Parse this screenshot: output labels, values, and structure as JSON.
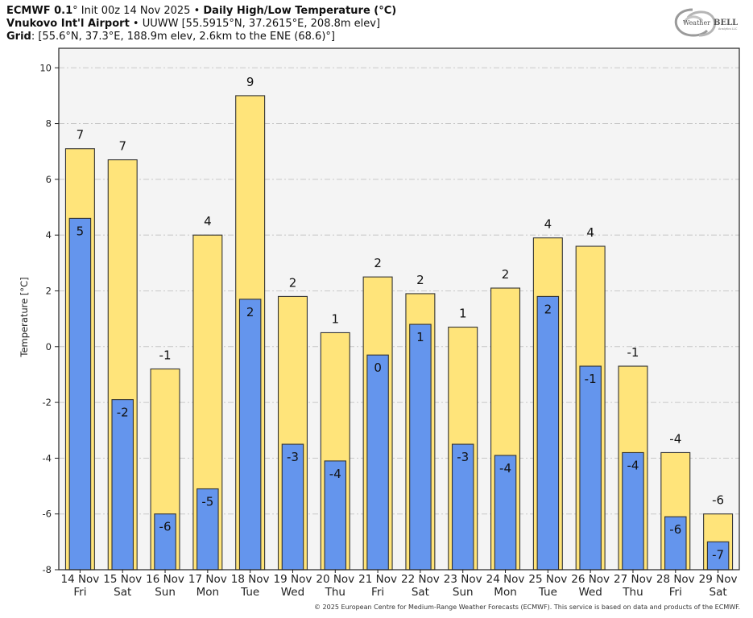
{
  "header": {
    "line1_bold_a": "ECMWF 0.1",
    "line1_a": "° Init 00z 14 Nov 2025 • ",
    "line1_bold_b": "Daily High/Low Temperature (°C)",
    "line2_bold": "Vnukovo Int'l Airport",
    "line2_rest": " • UUWW [55.5915°N, 37.2615°E, 208.8m elev]",
    "line3_bold": "Grid",
    "line3_rest": ": [55.6°N, 37.3°E, 188.9m elev, 2.6km to the ENE (68.6)°]"
  },
  "logo": {
    "text_a": "Weather",
    "text_b": "BELL",
    "sub": "Analytics LLC"
  },
  "footer": {
    "copyright": "© 2025 European Centre for Medium-Range Weather Forecasts (ECMWF). This service is based on data and products of the ECMWF."
  },
  "colors": {
    "high": "#ffe47a",
    "low": "#6495ed",
    "plot_bg": "#f4f4f4",
    "grid": "#c8c8c8",
    "edge": "#333333"
  },
  "chart_data": {
    "type": "bar",
    "title": "Daily High/Low Temperature (°C)",
    "xlabel": "",
    "ylabel": "Temperature [°C]",
    "ylim": [
      -8,
      10.7
    ],
    "yticks": [
      -8,
      -6,
      -4,
      -2,
      0,
      2,
      4,
      6,
      8,
      10
    ],
    "grid": true,
    "categories": [
      "14 Nov",
      "15 Nov",
      "16 Nov",
      "17 Nov",
      "18 Nov",
      "19 Nov",
      "20 Nov",
      "21 Nov",
      "22 Nov",
      "23 Nov",
      "24 Nov",
      "25 Nov",
      "26 Nov",
      "27 Nov",
      "28 Nov",
      "29 Nov"
    ],
    "weekdays": [
      "Fri",
      "Sat",
      "Sun",
      "Mon",
      "Tue",
      "Wed",
      "Thu",
      "Fri",
      "Sat",
      "Sun",
      "Mon",
      "Tue",
      "Wed",
      "Thu",
      "Fri",
      "Sat"
    ],
    "series": [
      {
        "name": "High",
        "values": [
          7.1,
          6.7,
          -0.8,
          4.0,
          9.0,
          1.8,
          0.5,
          2.5,
          1.9,
          0.7,
          2.1,
          3.9,
          3.6,
          -0.7,
          -3.8,
          -6.0
        ],
        "labels": [
          "7",
          "7",
          "-1",
          "4",
          "9",
          "2",
          "1",
          "2",
          "2",
          "1",
          "2",
          "4",
          "4",
          "-1",
          "-4",
          "-6"
        ]
      },
      {
        "name": "Low",
        "values": [
          4.6,
          -1.9,
          -6.0,
          -5.1,
          1.7,
          -3.5,
          -4.1,
          -0.3,
          0.8,
          -3.5,
          -3.9,
          1.8,
          -0.7,
          -3.8,
          -6.1,
          -7.0
        ],
        "labels": [
          "5",
          "-2",
          "-6",
          "-5",
          "2",
          "-3",
          "-4",
          "0",
          "1",
          "-3",
          "-4",
          "2",
          "-1",
          "-4",
          "-6",
          "-7"
        ]
      }
    ]
  }
}
